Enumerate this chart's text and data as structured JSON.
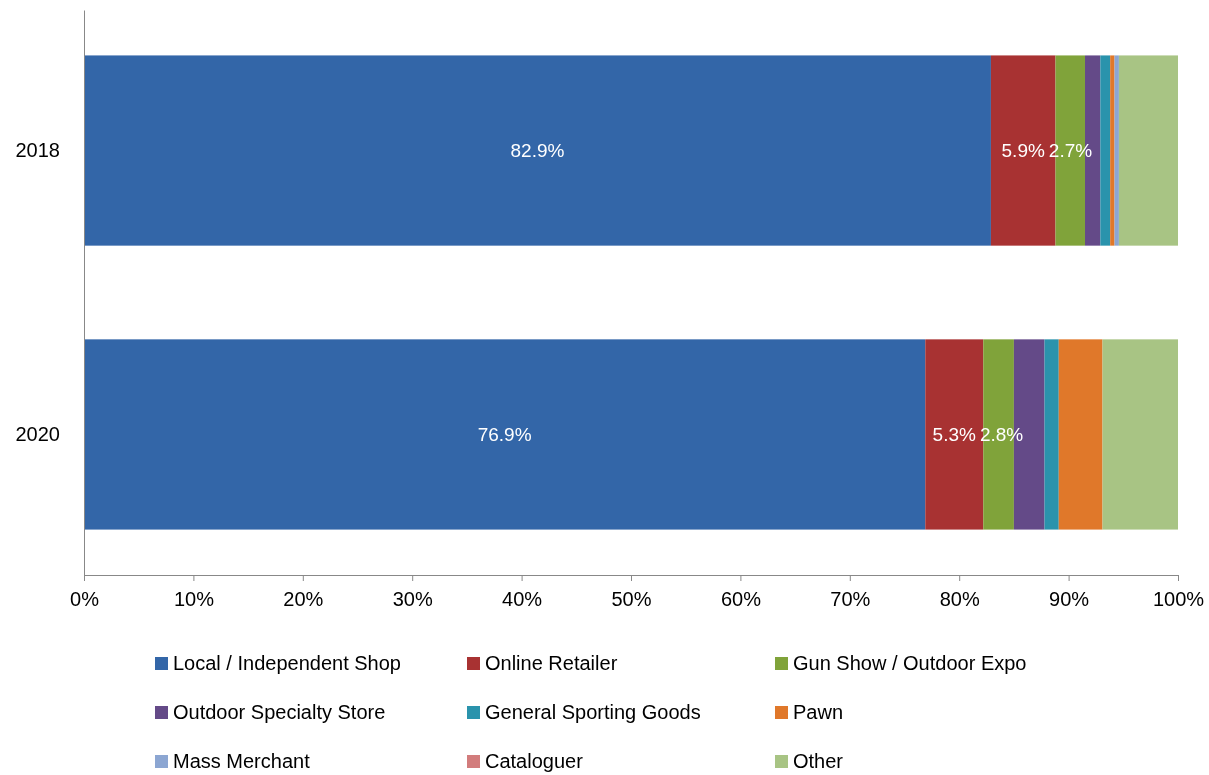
{
  "chart_data": {
    "type": "bar",
    "orientation": "horizontal",
    "stacked": true,
    "categories": [
      "2018",
      "2020"
    ],
    "xlim": [
      0,
      100
    ],
    "xticks": [
      {
        "value": 0,
        "label": "0%"
      },
      {
        "value": 10,
        "label": "10%"
      },
      {
        "value": 20,
        "label": "20%"
      },
      {
        "value": 30,
        "label": "30%"
      },
      {
        "value": 40,
        "label": "40%"
      },
      {
        "value": 50,
        "label": "50%"
      },
      {
        "value": 60,
        "label": "60%"
      },
      {
        "value": 70,
        "label": "70%"
      },
      {
        "value": 80,
        "label": "80%"
      },
      {
        "value": 90,
        "label": "90%"
      },
      {
        "value": 100,
        "label": "100%"
      }
    ],
    "legend": "bottom",
    "grid": false,
    "series": [
      {
        "name": "Local / Independent Shop",
        "color": "#3366a8",
        "values": [
          82.9,
          76.9
        ],
        "value_labels": [
          "82.9%",
          "76.9%"
        ]
      },
      {
        "name": "Online Retailer",
        "color": "#a83232",
        "values": [
          5.9,
          5.3
        ],
        "value_labels": [
          "5.9%",
          "5.3%"
        ]
      },
      {
        "name": "Gun Show / Outdoor Expo",
        "color": "#80a33a",
        "values": [
          2.7,
          2.8
        ],
        "value_labels": [
          "2.7%",
          "2.8%"
        ]
      },
      {
        "name": "Outdoor Specialty Store",
        "color": "#644a88",
        "values": [
          1.4,
          2.8
        ]
      },
      {
        "name": "General Sporting Goods",
        "color": "#2a93ac",
        "values": [
          0.9,
          1.3
        ]
      },
      {
        "name": "Pawn",
        "color": "#e0782a",
        "values": [
          0.4,
          4.0
        ]
      },
      {
        "name": "Mass Merchant",
        "color": "#8ca6d2",
        "values": [
          0.4,
          0
        ]
      },
      {
        "name": "Cataloguer",
        "color": "#d27c7c",
        "values": [
          0,
          0
        ]
      },
      {
        "name": "Other",
        "color": "#a8c484",
        "values": [
          5.4,
          6.9
        ]
      }
    ]
  }
}
